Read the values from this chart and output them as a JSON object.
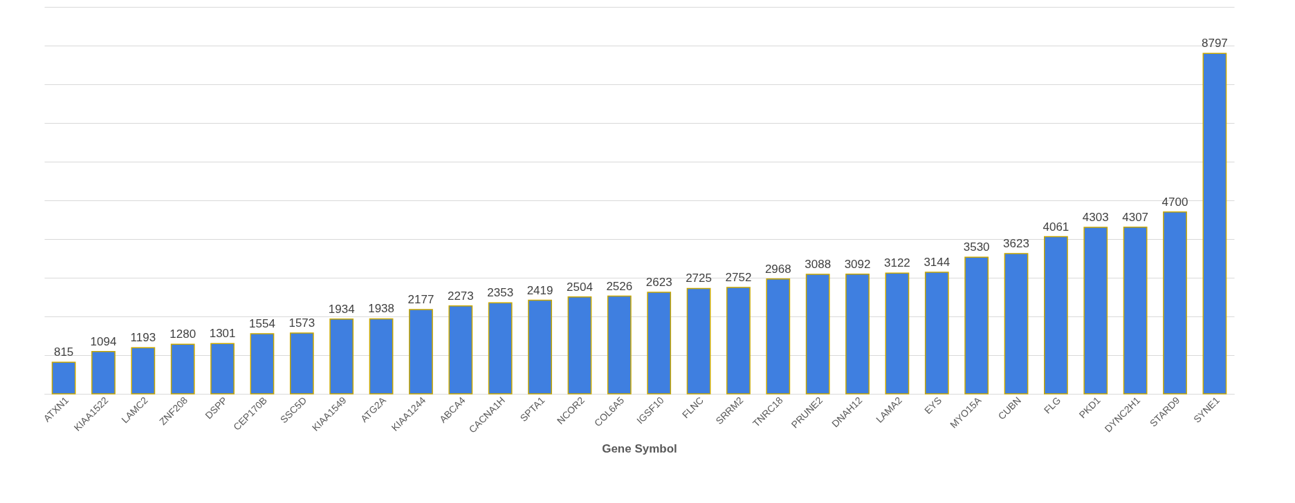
{
  "chart_data": {
    "type": "bar",
    "xlabel": "Gene Symbol",
    "categories": [
      "ATXN1",
      "KIAA1522",
      "LAMC2",
      "ZNF208",
      "DSPP",
      "CEP170B",
      "SSC5D",
      "KIAA1549",
      "ATG2A",
      "KIAA1244",
      "ABCA4",
      "CACNA1H",
      "SPTA1",
      "NCOR2",
      "COL6A5",
      "IGSF10",
      "FLNC",
      "SRRM2",
      "TNRC18",
      "PRUNE2",
      "DNAH12",
      "LAMA2",
      "EYS",
      "MYO15A",
      "CUBN",
      "FLG",
      "PKD1",
      "DYNC2H1",
      "STARD9",
      "SYNE1"
    ],
    "values": [
      815,
      1094,
      1193,
      1280,
      1301,
      1554,
      1573,
      1934,
      1938,
      2177,
      2273,
      2353,
      2419,
      2504,
      2526,
      2623,
      2725,
      2752,
      2968,
      3088,
      3092,
      3122,
      3144,
      3530,
      3623,
      4061,
      4303,
      4307,
      4700,
      8797
    ],
    "color": "#3f7fe0",
    "ylim": [
      0,
      10000
    ],
    "yticks": [
      {
        "value": 0,
        "label": null
      },
      {
        "value": 1000,
        "label": null
      },
      {
        "value": 2000,
        "label": null
      },
      {
        "value": 3000,
        "label": null
      },
      {
        "value": 4000,
        "label": null
      },
      {
        "value": 5000,
        "label": null
      },
      {
        "value": 6000,
        "label": null
      },
      {
        "value": 7000,
        "label": null
      },
      {
        "value": 8000,
        "label": null
      },
      {
        "value": 9000,
        "label": null
      },
      {
        "value": 10000,
        "label": null
      }
    ],
    "grid": "y",
    "data_labels": true
  }
}
